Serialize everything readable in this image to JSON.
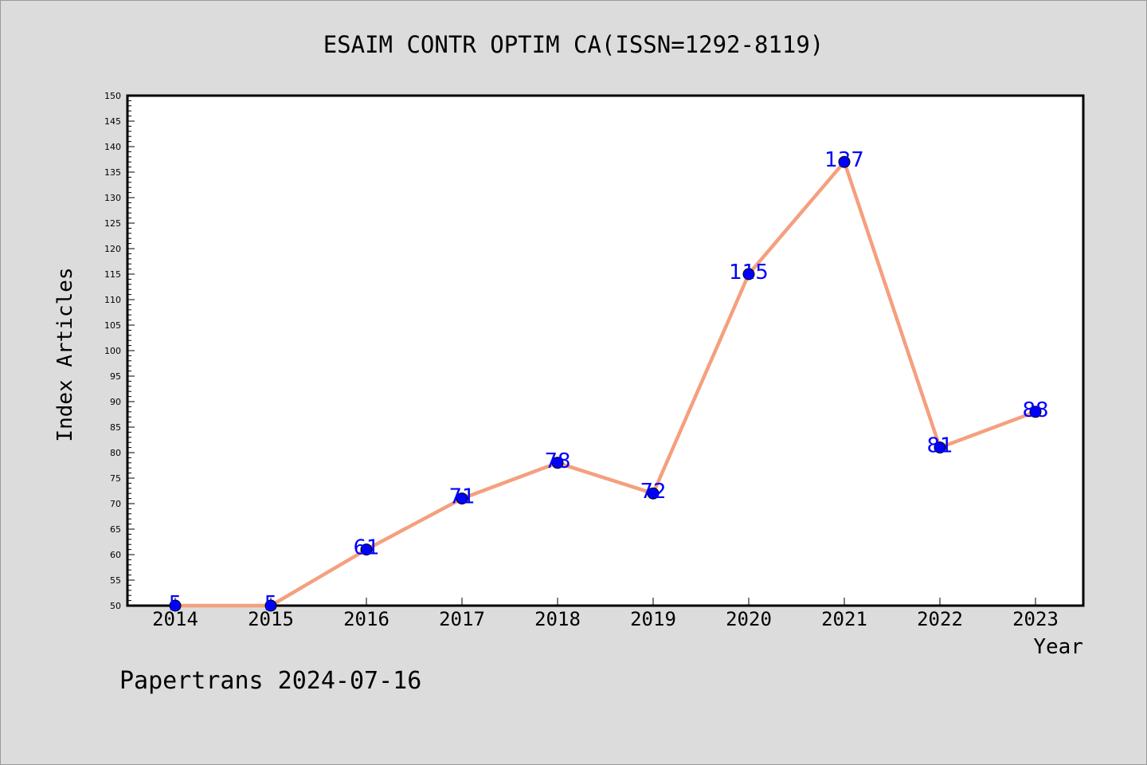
{
  "chart_data": {
    "type": "line",
    "title": "ESAIM CONTR OPTIM CA(ISSN=1292-8119)",
    "xlabel": "Year",
    "ylabel": "Index Articles",
    "categories": [
      "2014",
      "2015",
      "2016",
      "2017",
      "2018",
      "2019",
      "2020",
      "2021",
      "2022",
      "2023"
    ],
    "values": [
      5,
      5,
      61,
      71,
      78,
      72,
      115,
      137,
      81,
      88
    ],
    "data_labels": [
      "5",
      "5",
      "61",
      "71",
      "78",
      "72",
      "115",
      "137",
      "81",
      "88"
    ],
    "ylim": [
      50,
      150
    ],
    "y_major_step": 5,
    "y_minor_step": 1,
    "y_tick_labels": [
      "50",
      "55",
      "60",
      "65",
      "70",
      "75",
      "80",
      "85",
      "90",
      "95",
      "100",
      "105",
      "110",
      "115",
      "120",
      "125",
      "130",
      "135",
      "140",
      "145",
      "150"
    ],
    "grid": false,
    "line_color": "#f4a07e",
    "marker_color": "#0000ff",
    "label_color": "#0000ff",
    "footer": "Papertrans 2024-07-16"
  }
}
